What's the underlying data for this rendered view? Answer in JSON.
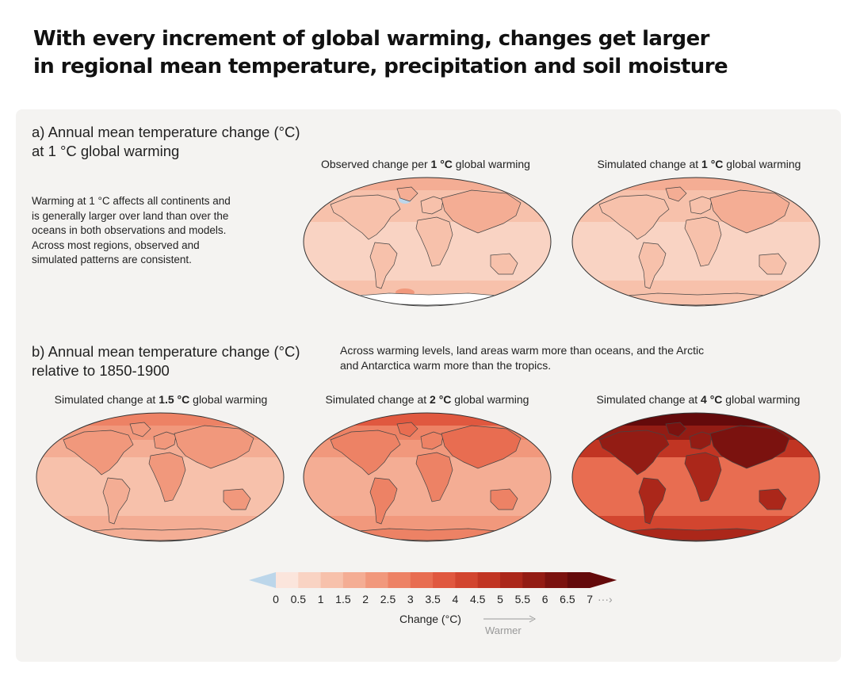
{
  "title": {
    "line1": "With every increment of global warming, changes get larger",
    "line2": "in regional mean temperature, precipitation and soil moisture"
  },
  "section_a": {
    "heading_line1": "a) Annual mean temperature change (°C)",
    "heading_line2": "at 1 °C global warming",
    "description": [
      "Warming at 1 °C affects all continents and",
      "is generally larger over land than over the",
      "oceans in both observations and models.",
      "Across most regions, observed and",
      "simulated patterns are consistent."
    ],
    "maps": [
      {
        "label_pre": "Observed change per ",
        "label_bold": "1 °C",
        "label_post": " global warming",
        "intensity": 1.0,
        "observed": true
      },
      {
        "label_pre": "Simulated change at ",
        "label_bold": "1 °C",
        "label_post": " global warming",
        "intensity": 1.0,
        "observed": false
      }
    ]
  },
  "section_b": {
    "heading_line1": "b) Annual mean temperature change (°C)",
    "heading_line2": "relative to 1850-1900",
    "description": [
      "Across warming levels, land areas warm more than oceans, and the Arctic",
      "and Antarctica warm more than the tropics."
    ],
    "maps": [
      {
        "label_pre": "Simulated change at ",
        "label_bold": "1.5 °C",
        "label_post": " global warming",
        "intensity": 1.5,
        "observed": false
      },
      {
        "label_pre": "Simulated change at ",
        "label_bold": "2 °C",
        "label_post": " global warming",
        "intensity": 2.0,
        "observed": false
      },
      {
        "label_pre": "Simulated change at ",
        "label_bold": "4 °C",
        "label_post": " global warming",
        "intensity": 4.0,
        "observed": false
      }
    ]
  },
  "colorbar": {
    "ticks": [
      "0",
      "0.5",
      "1",
      "1.5",
      "2",
      "2.5",
      "3",
      "3.5",
      "4",
      "4.5",
      "5",
      "5.5",
      "6",
      "6.5",
      "7"
    ],
    "colors": [
      "#fbe5dc",
      "#f9d3c3",
      "#f7c1ab",
      "#f4ad94",
      "#f1987c",
      "#ed8265",
      "#e86d51",
      "#e0583f",
      "#d2452f",
      "#c13523",
      "#ab271a",
      "#931c14",
      "#7b120f",
      "#640a0b"
    ],
    "negative_color": "#bcd6ea",
    "label": "Change (°C)",
    "warmer_label": "Warmer"
  }
}
